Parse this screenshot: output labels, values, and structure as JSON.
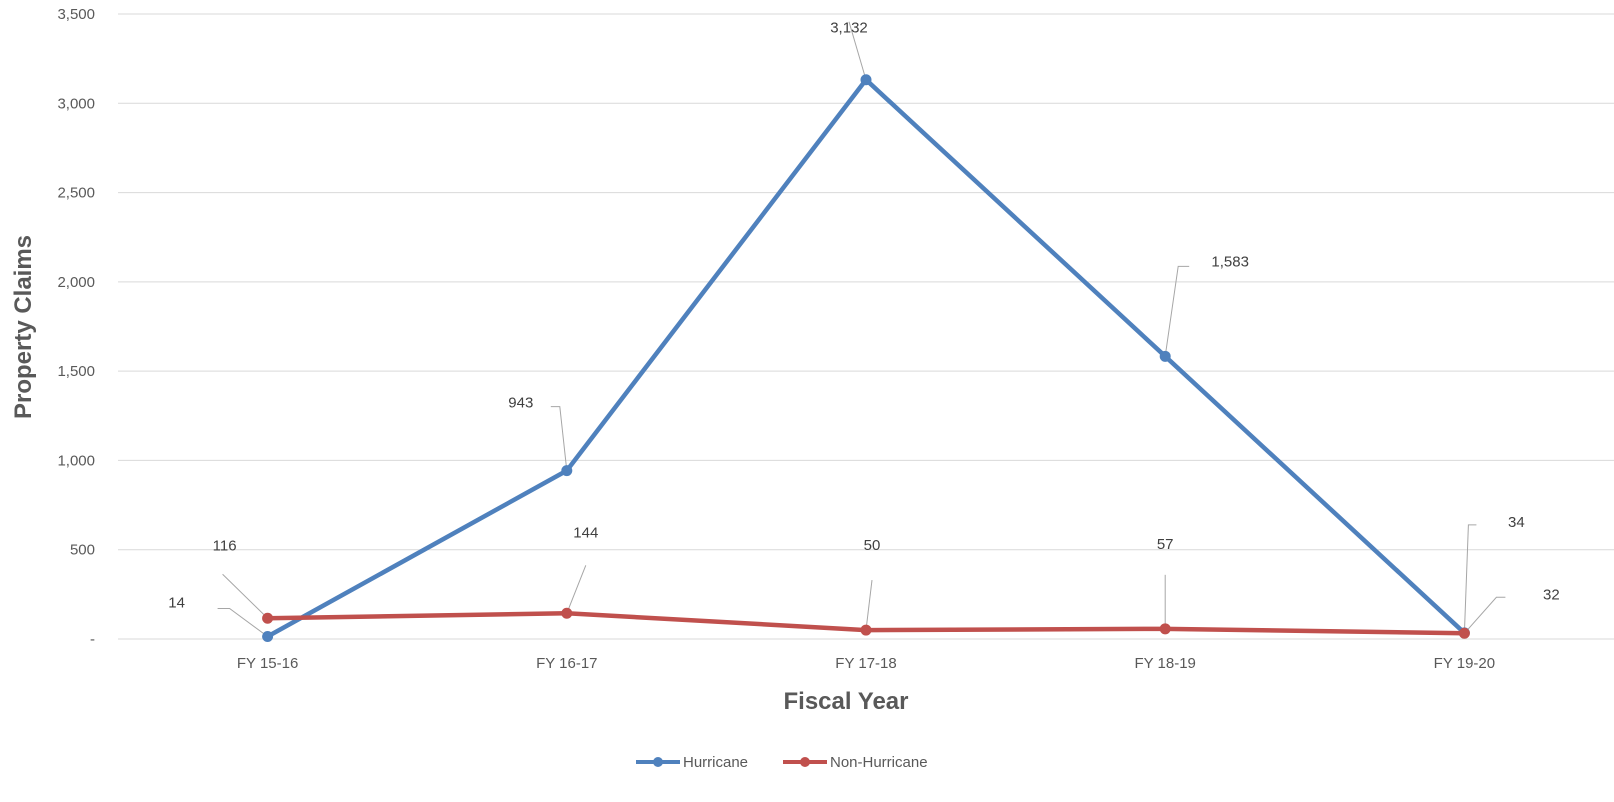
{
  "chart_data": {
    "type": "line",
    "title": "",
    "xlabel": "Fiscal Year",
    "ylabel": "Property Claims",
    "categories": [
      "FY 15-16",
      "FY 16-17",
      "FY 17-18",
      "FY 18-19",
      "FY 19-20"
    ],
    "ylim": [
      0,
      3500
    ],
    "yticks": [
      0,
      500,
      1000,
      1500,
      2000,
      2500,
      3000,
      3500
    ],
    "ytick_labels": [
      "-",
      "500",
      "1,000",
      "1,500",
      "2,000",
      "2,500",
      "3,000",
      "3,500"
    ],
    "grid": true,
    "legend_position": "bottom-center",
    "series": [
      {
        "name": "Hurricane",
        "color": "#4f81bd",
        "values": [
          14,
          943,
          3132,
          1583,
          34
        ],
        "labels": [
          "14",
          "943",
          "3,132",
          "1,583",
          "34"
        ]
      },
      {
        "name": "Non-Hurricane",
        "color": "#c0504d",
        "values": [
          116,
          144,
          50,
          57,
          32
        ],
        "labels": [
          "116",
          "144",
          "50",
          "57",
          "32"
        ]
      }
    ]
  }
}
